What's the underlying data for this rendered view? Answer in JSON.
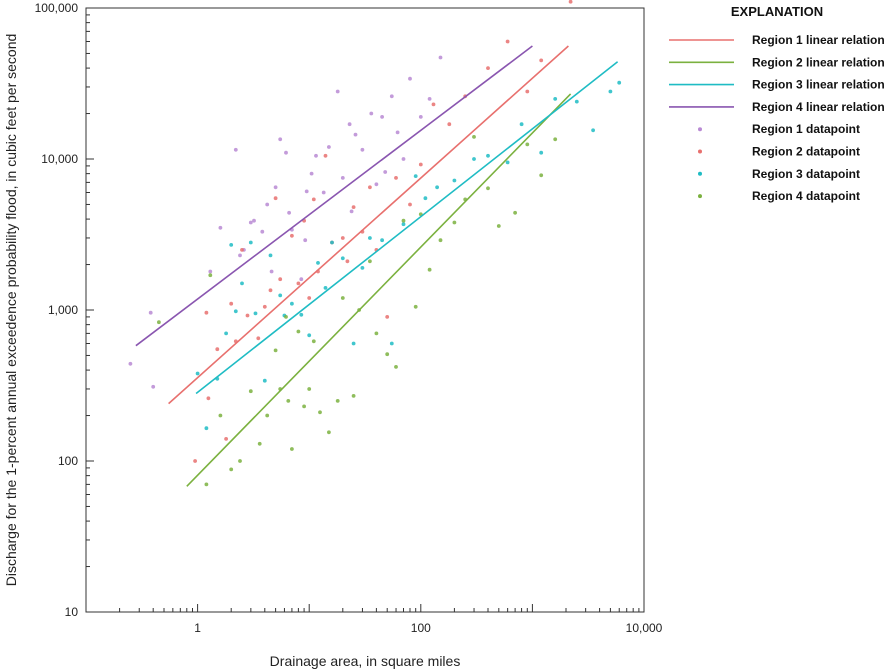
{
  "chart_data": {
    "type": "scatter",
    "x_scale": "log",
    "y_scale": "log",
    "xlim": [
      0.1,
      10000
    ],
    "ylim": [
      10,
      100000
    ],
    "xlabel": "Drainage area, in square miles",
    "ylabel": "Discharge for the 1-percent annual exceedence probability flood, in cubic feet per second",
    "x_ticks": [
      {
        "value": 1,
        "label": "1"
      },
      {
        "value": 100,
        "label": "100"
      },
      {
        "value": 10000,
        "label": "10,000"
      }
    ],
    "y_ticks": [
      {
        "value": 10,
        "label": "10"
      },
      {
        "value": 100,
        "label": "100"
      },
      {
        "value": 1000,
        "label": "1,000"
      },
      {
        "value": 10000,
        "label": "10,000"
      },
      {
        "value": 100000,
        "label": "100,000"
      }
    ],
    "grid": false,
    "legend": {
      "title": "EXPLANATION",
      "placement": "right",
      "entries": [
        {
          "label": "Region 1 linear relation",
          "kind": "line",
          "color": "#e8706e"
        },
        {
          "label": "Region 2 linear relation",
          "kind": "line",
          "color": "#7bb13f"
        },
        {
          "label": "Region 3 linear relation",
          "kind": "line",
          "color": "#1fbcc4"
        },
        {
          "label": "Region 4 linear relation",
          "kind": "line",
          "color": "#8a56b0"
        },
        {
          "label": "Region 1 datapoint",
          "kind": "point",
          "color": "#b98ad4"
        },
        {
          "label": "Region 2 datapoint",
          "kind": "point",
          "color": "#e8706e"
        },
        {
          "label": "Region 3 datapoint",
          "kind": "point",
          "color": "#1fbcc4"
        },
        {
          "label": "Region 4 datapoint",
          "kind": "point",
          "color": "#7bb13f"
        }
      ]
    },
    "lines": [
      {
        "name": "Region 1 linear relation",
        "color": "#e8706e",
        "x": [
          0.55,
          2100
        ],
        "y": [
          240,
          56000
        ]
      },
      {
        "name": "Region 2 linear relation",
        "color": "#7bb13f",
        "x": [
          0.8,
          2200
        ],
        "y": [
          68,
          27000
        ]
      },
      {
        "name": "Region 3 linear relation",
        "color": "#1fbcc4",
        "x": [
          0.97,
          5800
        ],
        "y": [
          280,
          44000
        ]
      },
      {
        "name": "Region 4 linear relation",
        "color": "#8a56b0",
        "x": [
          0.28,
          1000
        ],
        "y": [
          580,
          56000
        ]
      }
    ],
    "point_series": [
      {
        "name": "Region 1 datapoint",
        "color": "#b98ad4",
        "x": [
          0.25,
          0.4,
          0.38,
          1.3,
          1.6,
          2.2,
          2.6,
          3.0,
          3.8,
          4.2,
          5.0,
          5.5,
          6.2,
          6.6,
          8.5,
          9.2,
          10.5,
          11.5,
          13.5,
          18.0,
          20.0,
          23.0,
          26.0,
          30.0,
          36.0,
          40.0,
          45.0,
          55.0,
          62.0,
          80.0,
          120.0,
          150.0,
          2.4,
          3.2,
          4.6,
          7.0,
          9.5,
          15.0,
          24.0,
          48.0,
          70.0,
          100.0
        ],
        "y": [
          440,
          310,
          960,
          1800,
          3500,
          11500,
          2500,
          3800,
          3300,
          5000,
          6500,
          13500,
          11000,
          4400,
          1600,
          2900,
          8000,
          10500,
          6000,
          28000,
          7500,
          17000,
          14500,
          11500,
          20000,
          6800,
          19000,
          26000,
          15000,
          34000,
          25000,
          47000,
          2300,
          3900,
          1800,
          3400,
          6100,
          12000,
          4500,
          8200,
          10000,
          19000
        ]
      },
      {
        "name": "Region 2 datapoint",
        "color": "#e8706e",
        "x": [
          0.95,
          1.2,
          1.25,
          1.5,
          1.8,
          2.0,
          2.2,
          2.5,
          3.5,
          4.0,
          5.0,
          5.5,
          7.0,
          8.0,
          10.0,
          11.0,
          12.0,
          14.0,
          16.0,
          20.0,
          25.0,
          30.0,
          35.0,
          40.0,
          50.0,
          60.0,
          80.0,
          100.0,
          130.0,
          180.0,
          250.0,
          400.0,
          600.0,
          900.0,
          1200.0,
          2200.0,
          2.8,
          4.5,
          9.0,
          22.0
        ],
        "y": [
          100,
          960,
          260,
          550,
          140,
          1100,
          620,
          2500,
          650,
          1050,
          5500,
          1600,
          3100,
          1500,
          1200,
          5400,
          1800,
          10500,
          2800,
          3000,
          4800,
          3300,
          6500,
          2500,
          900,
          7500,
          5000,
          9200,
          23000,
          17000,
          26000,
          40000,
          60000,
          28000,
          45000,
          110000,
          920,
          1350,
          3900,
          2100
        ]
      },
      {
        "name": "Region 3 datapoint",
        "color": "#1fbcc4",
        "x": [
          1.0,
          1.2,
          1.5,
          1.8,
          2.0,
          2.2,
          2.5,
          3.0,
          3.3,
          4.0,
          4.5,
          5.5,
          6.0,
          7.0,
          8.5,
          10.0,
          12.0,
          14.0,
          16.0,
          20.0,
          25.0,
          30.0,
          35.0,
          45.0,
          55.0,
          70.0,
          90.0,
          110.0,
          140.0,
          200.0,
          300.0,
          400.0,
          600.0,
          800.0,
          1200.0,
          1600.0,
          2500.0,
          3500.0,
          5000.0,
          6000.0
        ],
        "y": [
          380,
          165,
          350,
          700,
          2700,
          980,
          1500,
          2800,
          950,
          340,
          2300,
          1250,
          920,
          1100,
          930,
          680,
          2050,
          1400,
          2800,
          2200,
          600,
          1900,
          3000,
          2900,
          600,
          3700,
          7700,
          5500,
          6500,
          7200,
          10000,
          10500,
          9500,
          17000,
          11000,
          25000,
          24000,
          15500,
          28000,
          32000
        ]
      },
      {
        "name": "Region 4 datapoint",
        "color": "#7bb13f",
        "x": [
          0.45,
          1.2,
          1.6,
          2.0,
          2.4,
          3.0,
          3.6,
          4.2,
          5.0,
          5.5,
          6.5,
          7.0,
          8.0,
          9.0,
          10.0,
          11.0,
          12.5,
          15.0,
          18.0,
          20.0,
          25.0,
          28.0,
          35.0,
          40.0,
          50.0,
          60.0,
          70.0,
          90.0,
          100.0,
          120.0,
          150.0,
          200.0,
          250.0,
          300.0,
          400.0,
          500.0,
          700.0,
          900.0,
          1200.0,
          1600.0,
          1.3,
          6.2
        ],
        "y": [
          830,
          70,
          200,
          88,
          100,
          290,
          130,
          200,
          540,
          300,
          250,
          120,
          720,
          230,
          300,
          620,
          210,
          155,
          250,
          1200,
          270,
          1000,
          2100,
          700,
          510,
          420,
          3900,
          1050,
          4300,
          1850,
          2900,
          3800,
          5400,
          14000,
          6400,
          3600,
          4400,
          12500,
          7800,
          13500,
          1700,
          900
        ]
      }
    ]
  }
}
